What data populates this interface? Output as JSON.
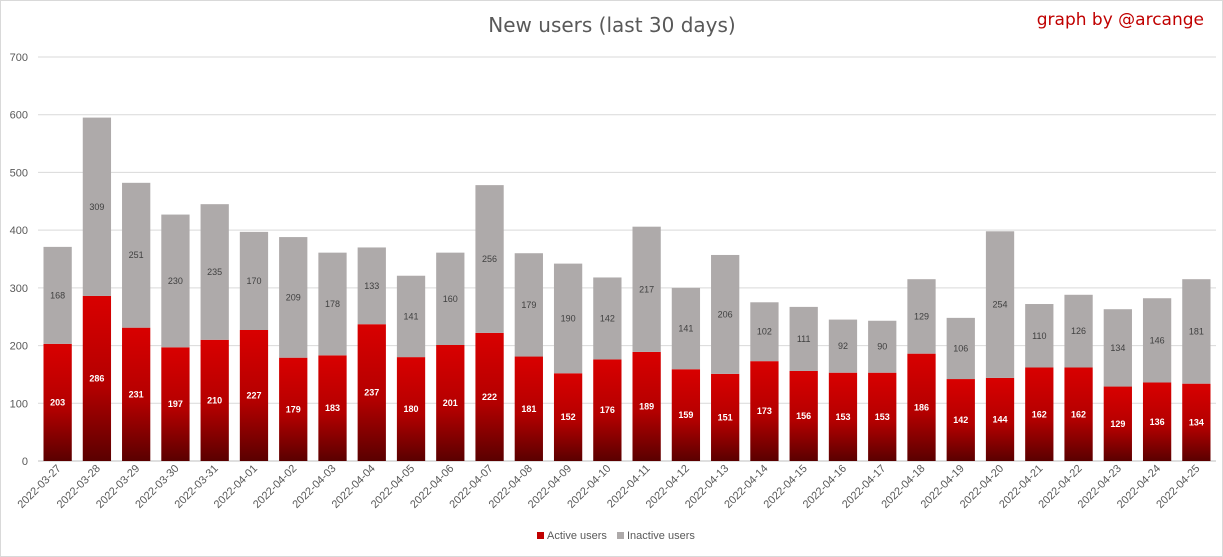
{
  "chart_data": {
    "type": "bar",
    "stacked": true,
    "title": "New users (last 30 days)",
    "credit": "graph by @arcange",
    "xlabel": "",
    "ylabel": "",
    "ylim": [
      0,
      700
    ],
    "yticks": [
      0,
      100,
      200,
      300,
      400,
      500,
      600,
      700
    ],
    "grid": true,
    "legend_position": "bottom",
    "categories": [
      "2022-03-27",
      "2022-03-28",
      "2022-03-29",
      "2022-03-30",
      "2022-03-31",
      "2022-04-01",
      "2022-04-02",
      "2022-04-03",
      "2022-04-04",
      "2022-04-05",
      "2022-04-06",
      "2022-04-07",
      "2022-04-08",
      "2022-04-09",
      "2022-04-10",
      "2022-04-11",
      "2022-04-12",
      "2022-04-13",
      "2022-04-14",
      "2022-04-15",
      "2022-04-16",
      "2022-04-17",
      "2022-04-18",
      "2022-04-19",
      "2022-04-20",
      "2022-04-21",
      "2022-04-22",
      "2022-04-23",
      "2022-04-24",
      "2022-04-25"
    ],
    "series": [
      {
        "name": "Active users",
        "color": "#c00000",
        "values": [
          203,
          286,
          231,
          197,
          210,
          227,
          179,
          183,
          237,
          180,
          201,
          222,
          181,
          152,
          176,
          189,
          159,
          151,
          173,
          156,
          153,
          153,
          186,
          142,
          144,
          162,
          162,
          129,
          136,
          134
        ]
      },
      {
        "name": "Inactive users",
        "color": "#aeaaaa",
        "values": [
          168,
          309,
          251,
          230,
          235,
          170,
          209,
          178,
          133,
          141,
          160,
          256,
          179,
          190,
          142,
          217,
          141,
          206,
          102,
          111,
          92,
          90,
          129,
          106,
          254,
          110,
          126,
          134,
          146,
          181
        ]
      }
    ]
  }
}
